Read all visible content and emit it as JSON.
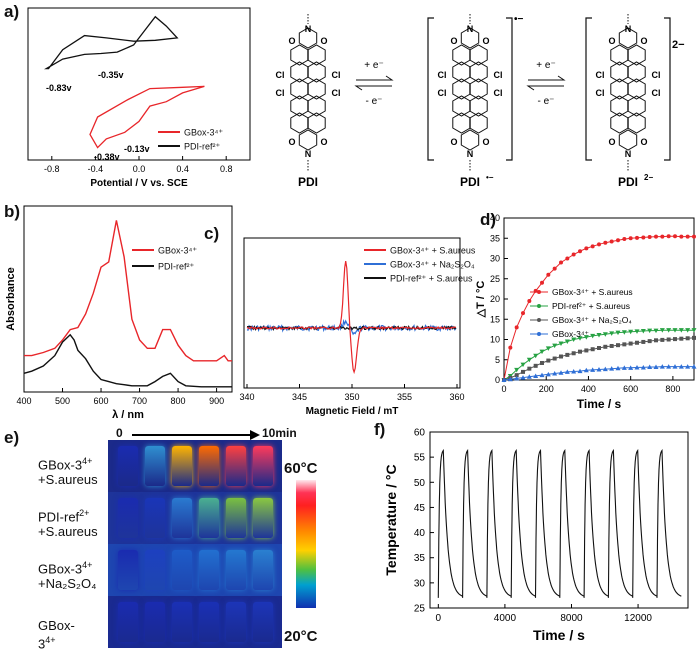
{
  "panel_labels": {
    "a": "a)",
    "b": "b)",
    "c": "c)",
    "d": "d)",
    "e": "e)",
    "f": "f)"
  },
  "colors": {
    "gbox": "#e8262a",
    "ref": "#111111",
    "blue": "#2f6fd6",
    "green": "#27a243",
    "grey": "#555555"
  },
  "panel_a": {
    "chart_data": {
      "type": "line",
      "title": "",
      "xlabel": "Potential / V vs. SCE",
      "ylabel": "",
      "xlim": [
        -1.0,
        1.0
      ],
      "xticks": [
        "-0.8",
        "-0.4",
        "0.0",
        "0.4",
        "0.8"
      ],
      "series": [
        {
          "name": "GBox-3⁴⁺",
          "color": "#e8262a",
          "x": [
            -0.38,
            -0.3,
            -0.13,
            0.0,
            0.1,
            0.25,
            0.4,
            0.6,
            0.4,
            0.1,
            -0.1,
            -0.38,
            -0.45,
            -0.38
          ],
          "y": [
            -0.9,
            -0.7,
            -0.55,
            -0.3,
            0.05,
            0.15,
            0.35,
            0.5,
            0.48,
            0.45,
            0.2,
            -0.2,
            -0.6,
            -0.9
          ]
        },
        {
          "name": "PDI-ref²⁺",
          "color": "#111111",
          "x": [
            -0.85,
            -0.7,
            -0.5,
            -0.35,
            -0.2,
            -0.05,
            0.05,
            0.15,
            0.25,
            0.35,
            0.15,
            -0.05,
            -0.3,
            -0.5,
            -0.7,
            -0.83
          ],
          "y": [
            1.2,
            1.4,
            1.5,
            1.52,
            1.55,
            1.7,
            2.0,
            2.3,
            2.1,
            1.85,
            1.8,
            1.78,
            1.85,
            1.9,
            1.6,
            1.2
          ]
        }
      ],
      "annotations": [
        "-0.83v",
        "-0.35v",
        "-0.38v",
        "-0.13v"
      ]
    }
  },
  "scheme": {
    "labels": {
      "pdi": "PDI",
      "radical": "PDI",
      "radical_sup": "•−",
      "dianion": "PDI",
      "dianion_sup": "2−"
    },
    "arrows": {
      "plus_e1": "+ e⁻",
      "minus_e1": "- e⁻",
      "plus_e2": "+ e⁻",
      "minus_e2": "- e⁻"
    },
    "charges": {
      "radical": "•−",
      "dianion": "2−"
    },
    "atoms": {
      "cl": "Cl",
      "n": "N",
      "o": "O"
    }
  },
  "panel_b": {
    "chart_data": {
      "type": "line",
      "xlabel": "λ / nm",
      "ylabel": "Absorbance",
      "xlim": [
        400,
        940
      ],
      "xticks": [
        400,
        500,
        600,
        700,
        800,
        900
      ],
      "series": [
        {
          "name": "GBox-3⁴⁺",
          "color": "#e8262a",
          "x": [
            400,
            420,
            450,
            480,
            500,
            520,
            540,
            560,
            580,
            600,
            620,
            640,
            660,
            680,
            700,
            720,
            740,
            760,
            780,
            800,
            820,
            840,
            860,
            880,
            900,
            920,
            930,
            940
          ],
          "y": [
            0.35,
            0.35,
            0.38,
            0.42,
            0.5,
            0.6,
            0.62,
            0.75,
            0.95,
            1.2,
            1.25,
            1.65,
            1.3,
            0.7,
            0.5,
            0.42,
            0.42,
            0.6,
            0.6,
            0.45,
            0.35,
            0.3,
            0.3,
            0.3,
            0.3,
            0.35,
            0.3,
            0.3
          ]
        },
        {
          "name": "PDI-ref²⁺",
          "color": "#111111",
          "x": [
            400,
            420,
            450,
            480,
            500,
            520,
            530,
            540,
            560,
            580,
            600,
            620,
            640,
            660,
            680,
            700,
            720,
            740,
            760,
            780,
            800,
            820,
            860,
            900,
            940
          ],
          "y": [
            0.18,
            0.2,
            0.25,
            0.35,
            0.48,
            0.55,
            0.5,
            0.4,
            0.32,
            0.2,
            0.12,
            0.1,
            0.08,
            0.07,
            0.06,
            0.06,
            0.06,
            0.1,
            0.15,
            0.18,
            0.1,
            0.06,
            0.05,
            0.05,
            0.05
          ]
        }
      ]
    }
  },
  "panel_c": {
    "chart_data": {
      "type": "line",
      "xlabel": "Magnetic Field / mT",
      "ylabel": "",
      "xlim": [
        340,
        360
      ],
      "xticks": [
        340,
        345,
        350,
        355,
        360
      ],
      "series": [
        {
          "name": "GBox-3⁴⁺ + S.aureus",
          "color": "#e8262a"
        },
        {
          "name": "GBox-3⁴⁺ + Na₂S₂O₄",
          "color": "#2f6fd6"
        },
        {
          "name": "PDI-ref²⁺ + S.aureus",
          "color": "#111111"
        }
      ]
    }
  },
  "panel_d": {
    "chart_data": {
      "type": "line",
      "xlabel": "Time / s",
      "ylabel": "△T / °C",
      "xlim": [
        0,
        900
      ],
      "ylim": [
        0,
        40
      ],
      "xticks": [
        0,
        200,
        400,
        600,
        800
      ],
      "yticks": [
        0,
        5,
        10,
        15,
        20,
        25,
        30,
        35,
        40
      ],
      "series": [
        {
          "name": "GBox-3⁴⁺ + S.aureus",
          "color": "#e8262a",
          "marker": "circle",
          "x": [
            0,
            30,
            60,
            90,
            120,
            150,
            180,
            210,
            240,
            270,
            300,
            330,
            360,
            390,
            420,
            450,
            480,
            510,
            540,
            570,
            600,
            630,
            660,
            690,
            720,
            750,
            780,
            810,
            840,
            870,
            900
          ],
          "y": [
            0,
            8,
            13,
            16.5,
            19.5,
            22,
            24,
            26,
            27.5,
            29,
            30,
            31,
            31.8,
            32.5,
            33,
            33.5,
            33.9,
            34.2,
            34.5,
            34.8,
            35,
            35.1,
            35.2,
            35.3,
            35.4,
            35.4,
            35.5,
            35.5,
            35.4,
            35.4,
            35.4
          ]
        },
        {
          "name": "PDI-ref²⁺ + S.aureus",
          "color": "#27a243",
          "marker": "triangle-down",
          "x": [
            0,
            30,
            60,
            90,
            120,
            150,
            180,
            210,
            240,
            270,
            300,
            330,
            360,
            390,
            420,
            450,
            480,
            510,
            540,
            570,
            600,
            630,
            660,
            690,
            720,
            750,
            780,
            810,
            840,
            870,
            900
          ],
          "y": [
            0,
            1,
            2.5,
            3.8,
            5,
            6,
            7,
            7.8,
            8.5,
            9,
            9.5,
            10,
            10.3,
            10.6,
            10.9,
            11.1,
            11.3,
            11.5,
            11.7,
            11.8,
            11.9,
            12,
            12.1,
            12.2,
            12.2,
            12.3,
            12.3,
            12.3,
            12.3,
            12.3,
            12.3
          ]
        },
        {
          "name": "GBox-3⁴⁺ + Na₂S₂O₄",
          "color": "#555555",
          "marker": "square",
          "x": [
            0,
            30,
            60,
            90,
            120,
            150,
            180,
            210,
            240,
            270,
            300,
            330,
            360,
            390,
            420,
            450,
            480,
            510,
            540,
            570,
            600,
            630,
            660,
            690,
            720,
            750,
            780,
            810,
            840,
            870,
            900
          ],
          "y": [
            0,
            0.5,
            1.2,
            2,
            2.8,
            3.5,
            4.2,
            4.8,
            5.3,
            5.8,
            6.2,
            6.6,
            7,
            7.3,
            7.6,
            7.9,
            8.2,
            8.4,
            8.6,
            8.8,
            9,
            9.2,
            9.4,
            9.6,
            9.8,
            9.9,
            10,
            10.1,
            10.2,
            10.3,
            10.4
          ]
        },
        {
          "name": "GBox-3⁴⁺",
          "color": "#2f6fd6",
          "marker": "triangle-up",
          "x": [
            0,
            30,
            60,
            90,
            120,
            150,
            180,
            210,
            240,
            270,
            300,
            330,
            360,
            390,
            420,
            450,
            480,
            510,
            540,
            570,
            600,
            630,
            660,
            690,
            720,
            750,
            780,
            810,
            840,
            870,
            900
          ],
          "y": [
            0,
            0.2,
            0.4,
            0.6,
            0.8,
            1,
            1.2,
            1.4,
            1.6,
            1.8,
            2,
            2.1,
            2.2,
            2.4,
            2.5,
            2.6,
            2.7,
            2.8,
            2.9,
            3,
            3,
            3.1,
            3.1,
            3.2,
            3.2,
            3.3,
            3.3,
            3.3,
            3.3,
            3.3,
            3.3
          ]
        }
      ]
    }
  },
  "panel_e": {
    "time_start": "0",
    "time_end": "10min",
    "rows": [
      {
        "label_html_main": "GBox-3",
        "label_sup": "4+",
        "label_line2": "+S.aureus",
        "vials": [
          "#1a2bb0",
          "#2f8fd0",
          "#ffb400",
          "#ff6a00",
          "#ff4040",
          "#ff3a5a"
        ]
      },
      {
        "label_html_main": "PDI-ref",
        "label_sup": "2+",
        "label_line2": "+S.aureus",
        "vials": [
          "#1a2bb0",
          "#1a35b8",
          "#2a7ad0",
          "#4ab090",
          "#7ac040",
          "#8ac840"
        ]
      },
      {
        "label_html_main": "GBox-3",
        "label_sup": "4+",
        "label_line2": "+Na₂S₂O₄",
        "vials": [
          "#1a2bb0",
          "#1d40c0",
          "#1e5cc8",
          "#2270d0",
          "#2478d0",
          "#2a80d0"
        ]
      },
      {
        "label_html_main": "GBox-3",
        "label_sup": "4+",
        "label_line2": "",
        "vials": [
          "#1a2bb0",
          "#1a2bb0",
          "#1a30b5",
          "#1a30b5",
          "#1c35b8",
          "#1c35b8"
        ]
      }
    ],
    "colorbar": {
      "max": "60°C",
      "min": "20°C"
    }
  },
  "panel_f": {
    "chart_data": {
      "type": "line",
      "xlabel": "Time / s",
      "ylabel": "Temperature / °C",
      "xlim": [
        -500,
        15000
      ],
      "ylim": [
        25,
        60
      ],
      "xticks": [
        0,
        4000,
        8000,
        12000
      ],
      "yticks": [
        25,
        30,
        35,
        40,
        45,
        50,
        55,
        60
      ],
      "cycles": 10,
      "period_s": 1460,
      "min_temp": 27,
      "max_temp": 56.5
    }
  }
}
